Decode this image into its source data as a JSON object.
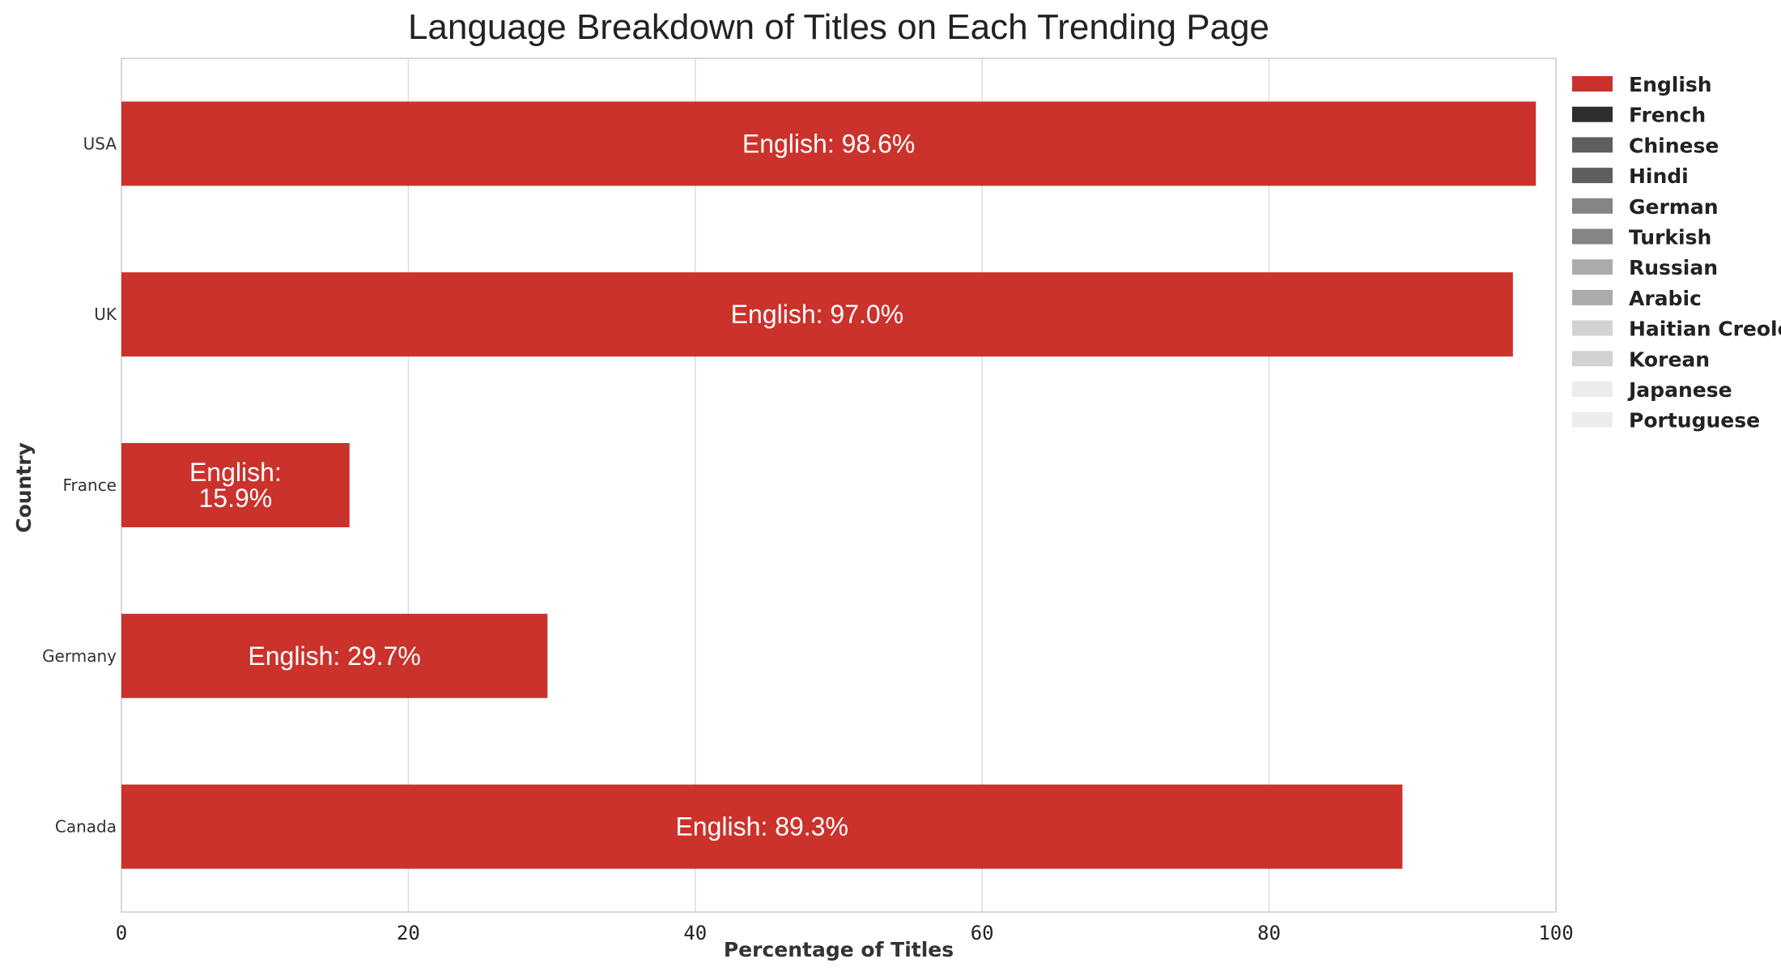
{
  "chart_data": {
    "type": "bar",
    "orientation": "horizontal",
    "stacked": true,
    "title": "Language Breakdown of Titles on Each Trending Page",
    "xlabel": "Percentage of Titles",
    "ylabel": "Country",
    "xlim": [
      0,
      100
    ],
    "xticks": [
      "0",
      "20",
      "40",
      "60",
      "80",
      "100"
    ],
    "grid": "vertical",
    "legend_placement": "outside-right-top",
    "categories": [
      "USA",
      "UK",
      "France",
      "Germany",
      "Canada"
    ],
    "series": [
      {
        "name": "English",
        "color": "#cb322c",
        "values": [
          98.6,
          97.0,
          15.9,
          29.7,
          89.3
        ],
        "labels": [
          "English: 98.6%",
          "English: 97.0%",
          "English:\n15.9%",
          "English: 29.7%",
          "English: 89.3%"
        ]
      },
      {
        "name": "French",
        "color": "#2e2e2e",
        "values": [
          0,
          0,
          0,
          0,
          0
        ]
      },
      {
        "name": "Chinese",
        "color": "#5e5e5e",
        "values": [
          0,
          0,
          0,
          0,
          0
        ]
      },
      {
        "name": "Hindi",
        "color": "#5e5e5e",
        "values": [
          0,
          0,
          0,
          0,
          0
        ]
      },
      {
        "name": "German",
        "color": "#848484",
        "values": [
          0,
          0,
          0,
          0,
          0
        ]
      },
      {
        "name": "Turkish",
        "color": "#848484",
        "values": [
          0,
          0,
          0,
          0,
          0
        ]
      },
      {
        "name": "Russian",
        "color": "#ababab",
        "values": [
          0,
          0,
          0,
          0,
          0
        ]
      },
      {
        "name": "Arabic",
        "color": "#ababab",
        "values": [
          0,
          0,
          0,
          0,
          0
        ]
      },
      {
        "name": "Haitian Creole",
        "color": "#d2d2d2",
        "values": [
          0,
          0,
          0,
          0,
          0
        ]
      },
      {
        "name": "Korean",
        "color": "#d2d2d2",
        "values": [
          0,
          0,
          0,
          0,
          0
        ]
      },
      {
        "name": "Japanese",
        "color": "#ececec",
        "values": [
          0,
          0,
          0,
          0,
          0
        ]
      },
      {
        "name": "Portuguese",
        "color": "#ececec",
        "values": [
          0,
          0,
          0,
          0,
          0
        ]
      }
    ]
  }
}
